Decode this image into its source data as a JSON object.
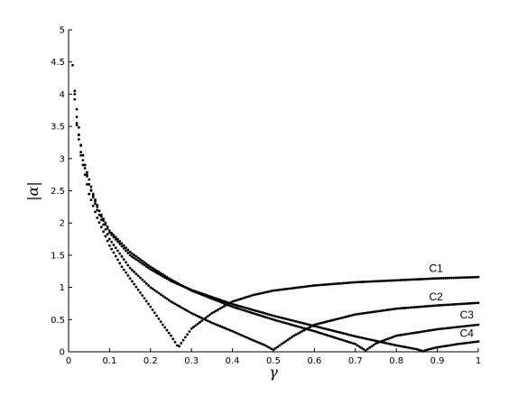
{
  "chart_data": {
    "type": "scatter",
    "title": "",
    "xlabel": "γ",
    "ylabel": "|α|",
    "xlim": [
      0,
      1
    ],
    "ylim": [
      0,
      5
    ],
    "xticks": [
      "0",
      "0.1",
      "0.2",
      "0.3",
      "0.4",
      "0.5",
      "0.6",
      "0.7",
      "0.8",
      "0.9",
      "1"
    ],
    "yticks": [
      "0",
      "0.5",
      "1",
      "1.5",
      "2",
      "2.5",
      "3",
      "3.5",
      "4",
      "4.5",
      "5"
    ],
    "grid": false,
    "legend": "none",
    "point_color": "#000000",
    "series": [
      {
        "name": "C1",
        "label_at": [
          0.88,
          1.24
        ],
        "x": [
          0.01,
          0.02,
          0.03,
          0.05,
          0.07,
          0.1,
          0.13,
          0.16,
          0.2,
          0.23,
          0.25,
          0.268,
          0.28,
          0.3,
          0.35,
          0.4,
          0.45,
          0.5,
          0.6,
          0.7,
          0.8,
          0.9,
          1.0
        ],
        "y": [
          4.45,
          3.55,
          3.05,
          2.45,
          2.08,
          1.65,
          1.32,
          1.05,
          0.7,
          0.42,
          0.25,
          0.07,
          0.18,
          0.36,
          0.6,
          0.78,
          0.88,
          0.95,
          1.03,
          1.08,
          1.11,
          1.14,
          1.16
        ]
      },
      {
        "name": "C2",
        "label_at": [
          0.88,
          0.8
        ],
        "x": [
          0.015,
          0.03,
          0.05,
          0.07,
          0.1,
          0.15,
          0.2,
          0.25,
          0.3,
          0.35,
          0.4,
          0.45,
          0.48,
          0.5,
          0.52,
          0.55,
          0.6,
          0.7,
          0.8,
          0.9,
          1.0
        ],
        "y": [
          4.05,
          3.2,
          2.6,
          2.2,
          1.75,
          1.3,
          1.0,
          0.78,
          0.6,
          0.45,
          0.32,
          0.18,
          0.1,
          0.03,
          0.12,
          0.25,
          0.42,
          0.58,
          0.67,
          0.72,
          0.76
        ]
      },
      {
        "name": "C3",
        "label_at": [
          0.955,
          0.52
        ],
        "x": [
          0.015,
          0.03,
          0.05,
          0.07,
          0.1,
          0.15,
          0.2,
          0.25,
          0.3,
          0.4,
          0.5,
          0.6,
          0.65,
          0.7,
          0.725,
          0.75,
          0.8,
          0.9,
          1.0
        ],
        "y": [
          3.92,
          3.1,
          2.6,
          2.25,
          1.88,
          1.55,
          1.32,
          1.12,
          0.95,
          0.7,
          0.5,
          0.32,
          0.22,
          0.12,
          0.02,
          0.13,
          0.25,
          0.35,
          0.42
        ]
      },
      {
        "name": "C4",
        "label_at": [
          0.955,
          0.23
        ],
        "x": [
          0.02,
          0.04,
          0.06,
          0.08,
          0.1,
          0.15,
          0.2,
          0.25,
          0.3,
          0.4,
          0.5,
          0.6,
          0.7,
          0.8,
          0.85,
          0.865,
          0.88,
          0.9,
          0.95,
          1.0
        ],
        "y": [
          3.52,
          2.9,
          2.45,
          2.1,
          1.85,
          1.5,
          1.28,
          1.1,
          0.96,
          0.74,
          0.56,
          0.4,
          0.24,
          0.1,
          0.04,
          0.01,
          0.04,
          0.07,
          0.12,
          0.16
        ]
      }
    ]
  }
}
